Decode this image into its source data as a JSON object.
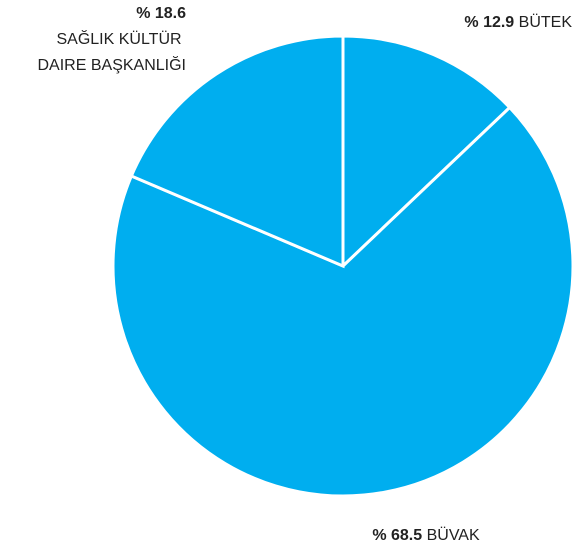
{
  "chart_data": {
    "type": "pie",
    "categories": [
      "BÜTEK",
      "BÜVAK",
      "SAĞLIK KÜLTÜR DAIRE BAŞKANLIĞI"
    ],
    "values": [
      12.9,
      68.5,
      18.6
    ],
    "value_labels": [
      "% 12.9",
      "% 68.5",
      "% 18.6"
    ],
    "color": "#00aeef"
  }
}
